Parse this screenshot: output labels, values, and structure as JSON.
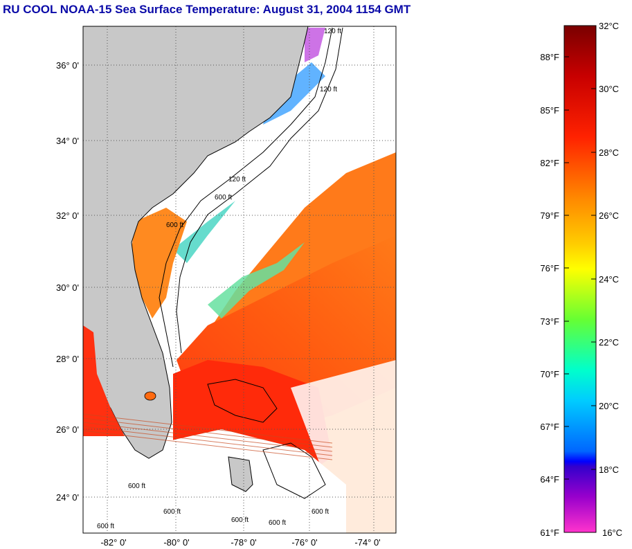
{
  "title": "RU COOL  NOAA-15  Sea Surface Temperature:  August 31, 2004 1154 GMT",
  "map": {
    "lat_labels": [
      "36° 0'",
      "34° 0'",
      "32° 0'",
      "30° 0'",
      "28° 0'",
      "26° 0'",
      "24° 0'"
    ],
    "lon_labels": [
      "-82° 0'",
      "-80° 0'",
      "-78° 0'",
      "-76° 0'",
      "-74° 0'"
    ],
    "contour_labels": [
      "120 ft",
      "120 ft",
      "120 ft",
      "600 ft",
      "600 ft",
      "600 ft",
      "600 ft",
      "600 ft",
      "600 ft",
      "600 ft",
      "600 ft"
    ],
    "land_color": "#c8c8c8",
    "cloud_color": "#ffffff"
  },
  "colorbar": {
    "fahrenheit": [
      "88°F",
      "85°F",
      "82°F",
      "79°F",
      "76°F",
      "73°F",
      "70°F",
      "67°F",
      "64°F",
      "61°F"
    ],
    "celsius": [
      "32°C",
      "30°C",
      "28°C",
      "26°C",
      "24°C",
      "22°C",
      "20°C",
      "18°C",
      "16°C"
    ],
    "colors": [
      "#8b0000",
      "#ff0000",
      "#ff7f00",
      "#ffff00",
      "#00ff00",
      "#00ffff",
      "#0000ff",
      "#ff00ff"
    ]
  }
}
